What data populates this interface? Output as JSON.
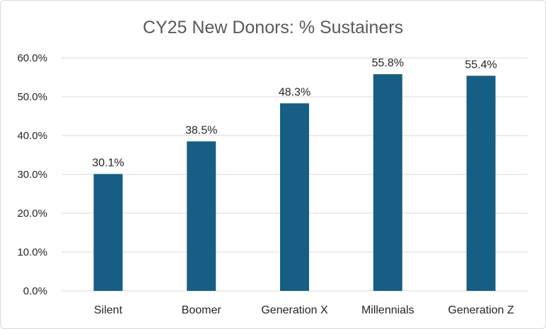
{
  "chart_data": {
    "type": "bar",
    "title": "CY25 New Donors:  % Sustainers",
    "xlabel": "",
    "ylabel": "",
    "categories": [
      "Silent",
      "Boomer",
      "Generation X",
      "Millennials",
      "Generation Z"
    ],
    "values": [
      30.1,
      38.5,
      48.3,
      55.8,
      55.4
    ],
    "data_labels": [
      "30.1%",
      "38.5%",
      "48.3%",
      "55.8%",
      "55.4%"
    ],
    "ylim": [
      0,
      60
    ],
    "yticks": [
      0,
      10,
      20,
      30,
      40,
      50,
      60
    ],
    "ytick_labels": [
      "0.0%",
      "10.0%",
      "20.0%",
      "30.0%",
      "40.0%",
      "50.0%",
      "60.0%"
    ],
    "grid": true,
    "legend": "none",
    "colors": {
      "bar": "#165E83",
      "grid": "#D9D9D9",
      "text": "#262626",
      "title": "#595959"
    }
  }
}
